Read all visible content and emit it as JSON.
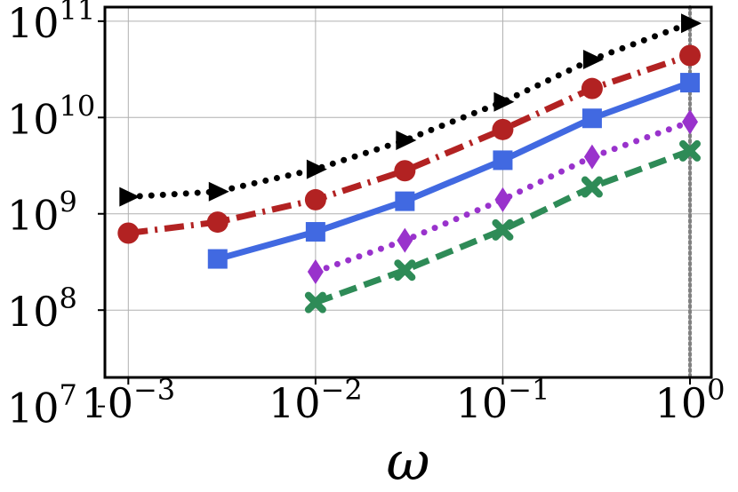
{
  "chart_data": {
    "type": "line",
    "title": "",
    "xlabel": "ω",
    "ylabel": "",
    "xscale": "log",
    "yscale": "log",
    "xlim": [
      0.00075,
      1.3
    ],
    "ylim": [
      20000000,
      140000000000
    ],
    "grid": true,
    "x_ticks": [
      {
        "value": 0.001,
        "base": "10",
        "exp": "−3"
      },
      {
        "value": 0.01,
        "base": "10",
        "exp": "−2"
      },
      {
        "value": 0.1,
        "base": "10",
        "exp": "−1"
      },
      {
        "value": 1,
        "base": "10",
        "exp": "0"
      }
    ],
    "y_ticks": [
      {
        "value": 10000000,
        "base": "10",
        "exp": "7"
      },
      {
        "value": 100000000,
        "base": "10",
        "exp": "8"
      },
      {
        "value": 1000000000,
        "base": "10",
        "exp": "9"
      },
      {
        "value": 10000000000,
        "base": "10",
        "exp": "10"
      },
      {
        "value": 100000000000,
        "base": "10",
        "exp": "11"
      }
    ],
    "vline": {
      "x": 1.0,
      "color": "#808080",
      "style": "dotted"
    },
    "series": [
      {
        "name": "series-black-triangle",
        "color": "#000000",
        "marker": "triangle-right",
        "linestyle": "dotted",
        "x": [
          0.001,
          0.003,
          0.01,
          0.03,
          0.1,
          0.3,
          1.0
        ],
        "y": [
          1500000000,
          1700000000,
          2900000000,
          5800000000,
          14500000000,
          40000000000,
          95000000000
        ]
      },
      {
        "name": "series-red-circle",
        "color": "#b22222",
        "marker": "circle",
        "linestyle": "dashdot",
        "x": [
          0.001,
          0.003,
          0.01,
          0.03,
          0.1,
          0.3,
          1.0
        ],
        "y": [
          630000000,
          820000000,
          1400000000,
          2800000000,
          7500000000,
          20000000000,
          44000000000
        ]
      },
      {
        "name": "series-blue-square",
        "color": "#4169e1",
        "marker": "square",
        "linestyle": "solid",
        "x": [
          0.003,
          0.01,
          0.03,
          0.1,
          0.3,
          1.0
        ],
        "y": [
          340000000,
          650000000,
          1350000000,
          3600000000,
          9800000000,
          23000000000
        ]
      },
      {
        "name": "series-purple-diamond",
        "color": "#9932cc",
        "marker": "diamond",
        "linestyle": "dotted",
        "x": [
          0.01,
          0.03,
          0.1,
          0.3,
          1.0
        ],
        "y": [
          250000000,
          530000000,
          1400000000,
          3900000000,
          9000000000
        ]
      },
      {
        "name": "series-green-x",
        "color": "#2e8b57",
        "marker": "x",
        "linestyle": "dashed",
        "x": [
          0.01,
          0.03,
          0.1,
          0.3,
          1.0
        ],
        "y": [
          120000000,
          260000000,
          680000000,
          1900000000,
          4500000000
        ]
      }
    ]
  }
}
